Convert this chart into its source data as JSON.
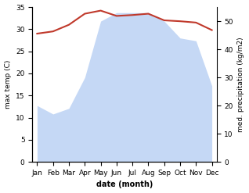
{
  "months": [
    "Jan",
    "Feb",
    "Mar",
    "Apr",
    "May",
    "Jun",
    "Jul",
    "Aug",
    "Sep",
    "Oct",
    "Nov",
    "Dec"
  ],
  "x": [
    0,
    1,
    2,
    3,
    4,
    5,
    6,
    7,
    8,
    9,
    10,
    11
  ],
  "temperature": [
    29,
    29.5,
    31,
    33.5,
    34.2,
    33.0,
    33.2,
    33.5,
    32.0,
    31.8,
    31.5,
    29.8
  ],
  "precipitation": [
    20,
    17,
    19,
    30,
    50,
    53,
    53,
    53,
    50,
    44,
    43,
    27
  ],
  "temp_color": "#c0392b",
  "precip_fill_color": "#c5d8f5",
  "temp_ylim": [
    0,
    35
  ],
  "precip_ylim": [
    0,
    55
  ],
  "temp_yticks": [
    0,
    5,
    10,
    15,
    20,
    25,
    30,
    35
  ],
  "precip_yticks": [
    0,
    10,
    20,
    30,
    40,
    50
  ],
  "xlabel": "date (month)",
  "ylabel_left": "max temp (C)",
  "ylabel_right": "med. precipitation (kg/m2)",
  "fig_width": 3.18,
  "fig_height": 2.47,
  "dpi": 100
}
